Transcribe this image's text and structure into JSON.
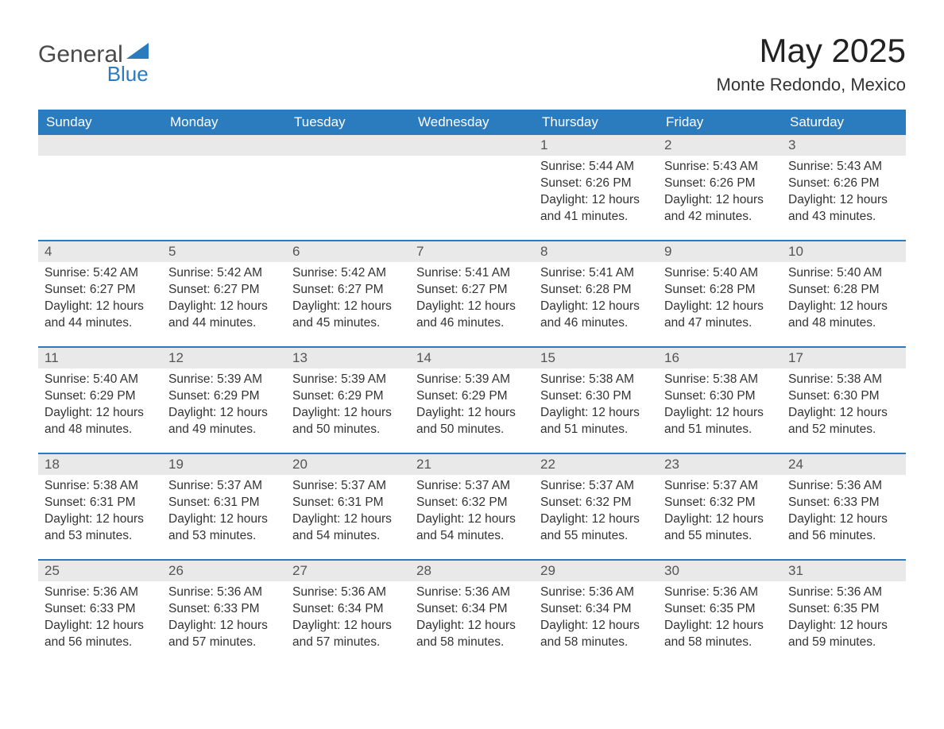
{
  "colors": {
    "brand_blue": "#2b7bbf",
    "header_text": "#ffffff",
    "date_bar_bg": "#e9e9e9",
    "date_bar_text": "#555555",
    "body_text": "#333333",
    "logo_gray": "#4a4a4a",
    "background": "#ffffff",
    "week_divider": "#2b7bbf"
  },
  "typography": {
    "title_fontsize_pt": 32,
    "location_fontsize_pt": 17,
    "day_header_fontsize_pt": 13,
    "date_number_fontsize_pt": 13,
    "detail_fontsize_pt": 12,
    "font_family": "Arial"
  },
  "logo": {
    "line1": "General",
    "line2": "Blue"
  },
  "title": "May 2025",
  "location": "Monte Redondo, Mexico",
  "day_headers": [
    "Sunday",
    "Monday",
    "Tuesday",
    "Wednesday",
    "Thursday",
    "Friday",
    "Saturday"
  ],
  "labels": {
    "sunrise": "Sunrise:",
    "sunset": "Sunset:",
    "daylight": "Daylight:"
  },
  "weeks": [
    [
      {
        "date": "",
        "sunrise": "",
        "sunset": "",
        "daylight": ""
      },
      {
        "date": "",
        "sunrise": "",
        "sunset": "",
        "daylight": ""
      },
      {
        "date": "",
        "sunrise": "",
        "sunset": "",
        "daylight": ""
      },
      {
        "date": "",
        "sunrise": "",
        "sunset": "",
        "daylight": ""
      },
      {
        "date": "1",
        "sunrise": "5:44 AM",
        "sunset": "6:26 PM",
        "daylight": "12 hours and 41 minutes."
      },
      {
        "date": "2",
        "sunrise": "5:43 AM",
        "sunset": "6:26 PM",
        "daylight": "12 hours and 42 minutes."
      },
      {
        "date": "3",
        "sunrise": "5:43 AM",
        "sunset": "6:26 PM",
        "daylight": "12 hours and 43 minutes."
      }
    ],
    [
      {
        "date": "4",
        "sunrise": "5:42 AM",
        "sunset": "6:27 PM",
        "daylight": "12 hours and 44 minutes."
      },
      {
        "date": "5",
        "sunrise": "5:42 AM",
        "sunset": "6:27 PM",
        "daylight": "12 hours and 44 minutes."
      },
      {
        "date": "6",
        "sunrise": "5:42 AM",
        "sunset": "6:27 PM",
        "daylight": "12 hours and 45 minutes."
      },
      {
        "date": "7",
        "sunrise": "5:41 AM",
        "sunset": "6:27 PM",
        "daylight": "12 hours and 46 minutes."
      },
      {
        "date": "8",
        "sunrise": "5:41 AM",
        "sunset": "6:28 PM",
        "daylight": "12 hours and 46 minutes."
      },
      {
        "date": "9",
        "sunrise": "5:40 AM",
        "sunset": "6:28 PM",
        "daylight": "12 hours and 47 minutes."
      },
      {
        "date": "10",
        "sunrise": "5:40 AM",
        "sunset": "6:28 PM",
        "daylight": "12 hours and 48 minutes."
      }
    ],
    [
      {
        "date": "11",
        "sunrise": "5:40 AM",
        "sunset": "6:29 PM",
        "daylight": "12 hours and 48 minutes."
      },
      {
        "date": "12",
        "sunrise": "5:39 AM",
        "sunset": "6:29 PM",
        "daylight": "12 hours and 49 minutes."
      },
      {
        "date": "13",
        "sunrise": "5:39 AM",
        "sunset": "6:29 PM",
        "daylight": "12 hours and 50 minutes."
      },
      {
        "date": "14",
        "sunrise": "5:39 AM",
        "sunset": "6:29 PM",
        "daylight": "12 hours and 50 minutes."
      },
      {
        "date": "15",
        "sunrise": "5:38 AM",
        "sunset": "6:30 PM",
        "daylight": "12 hours and 51 minutes."
      },
      {
        "date": "16",
        "sunrise": "5:38 AM",
        "sunset": "6:30 PM",
        "daylight": "12 hours and 51 minutes."
      },
      {
        "date": "17",
        "sunrise": "5:38 AM",
        "sunset": "6:30 PM",
        "daylight": "12 hours and 52 minutes."
      }
    ],
    [
      {
        "date": "18",
        "sunrise": "5:38 AM",
        "sunset": "6:31 PM",
        "daylight": "12 hours and 53 minutes."
      },
      {
        "date": "19",
        "sunrise": "5:37 AM",
        "sunset": "6:31 PM",
        "daylight": "12 hours and 53 minutes."
      },
      {
        "date": "20",
        "sunrise": "5:37 AM",
        "sunset": "6:31 PM",
        "daylight": "12 hours and 54 minutes."
      },
      {
        "date": "21",
        "sunrise": "5:37 AM",
        "sunset": "6:32 PM",
        "daylight": "12 hours and 54 minutes."
      },
      {
        "date": "22",
        "sunrise": "5:37 AM",
        "sunset": "6:32 PM",
        "daylight": "12 hours and 55 minutes."
      },
      {
        "date": "23",
        "sunrise": "5:37 AM",
        "sunset": "6:32 PM",
        "daylight": "12 hours and 55 minutes."
      },
      {
        "date": "24",
        "sunrise": "5:36 AM",
        "sunset": "6:33 PM",
        "daylight": "12 hours and 56 minutes."
      }
    ],
    [
      {
        "date": "25",
        "sunrise": "5:36 AM",
        "sunset": "6:33 PM",
        "daylight": "12 hours and 56 minutes."
      },
      {
        "date": "26",
        "sunrise": "5:36 AM",
        "sunset": "6:33 PM",
        "daylight": "12 hours and 57 minutes."
      },
      {
        "date": "27",
        "sunrise": "5:36 AM",
        "sunset": "6:34 PM",
        "daylight": "12 hours and 57 minutes."
      },
      {
        "date": "28",
        "sunrise": "5:36 AM",
        "sunset": "6:34 PM",
        "daylight": "12 hours and 58 minutes."
      },
      {
        "date": "29",
        "sunrise": "5:36 AM",
        "sunset": "6:34 PM",
        "daylight": "12 hours and 58 minutes."
      },
      {
        "date": "30",
        "sunrise": "5:36 AM",
        "sunset": "6:35 PM",
        "daylight": "12 hours and 58 minutes."
      },
      {
        "date": "31",
        "sunrise": "5:36 AM",
        "sunset": "6:35 PM",
        "daylight": "12 hours and 59 minutes."
      }
    ]
  ]
}
